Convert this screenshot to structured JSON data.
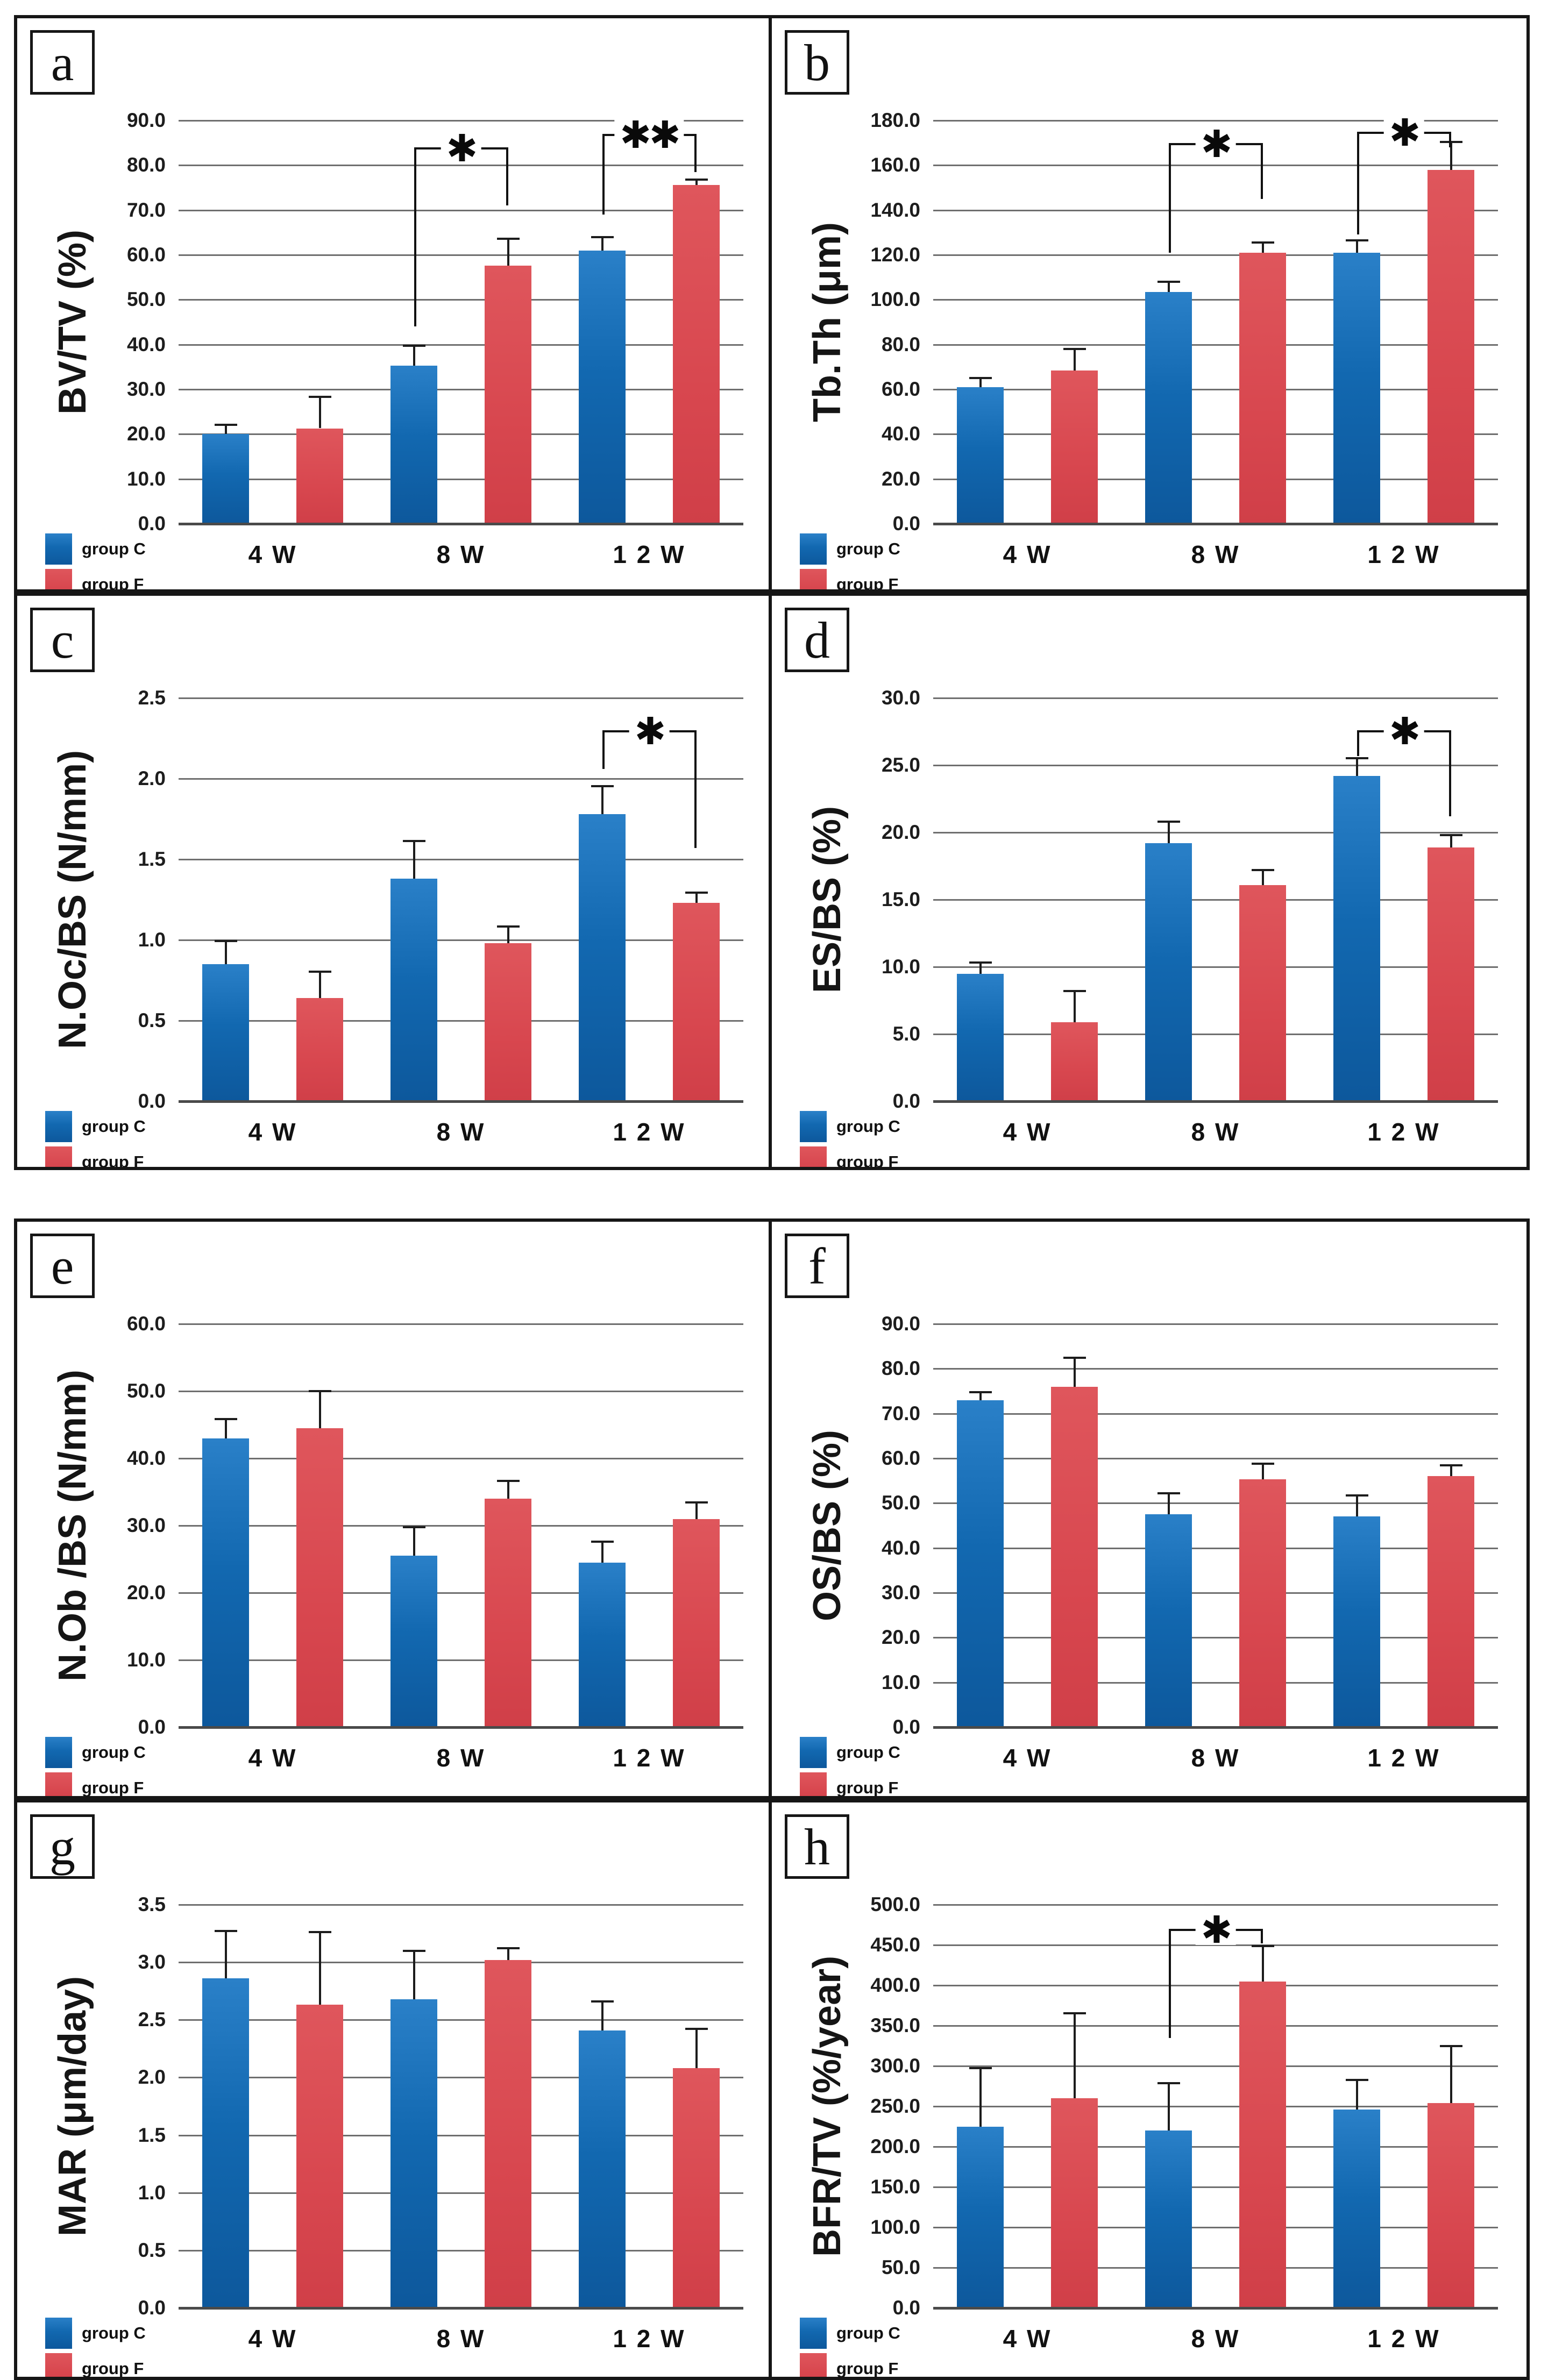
{
  "figure": {
    "legend": {
      "group_c_label": "group C",
      "group_f_label": "group F"
    },
    "colors": {
      "group_c_top": "#2a80c8",
      "group_c_bottom": "#0d589c",
      "group_f_top": "#df565c",
      "group_f_bottom": "#d03f48",
      "gridline": "#6f6f6f",
      "axis_line": "#4a4a4a",
      "panel_border": "#161616"
    },
    "x_categories": [
      "4 W",
      "8 W",
      "1 2 W"
    ]
  },
  "chart_data": [
    {
      "panel": "a",
      "type": "bar",
      "title": "",
      "xlabel": "",
      "ylabel": "BV/TV (%)",
      "ylim": [
        0,
        90
      ],
      "ytick_labels": [
        "0.0",
        "10.0",
        "20.0",
        "30.0",
        "40.0",
        "50.0",
        "60.0",
        "70.0",
        "80.0",
        "90.0"
      ],
      "categories": [
        "4 W",
        "8 W",
        "1 2 W"
      ],
      "series": [
        {
          "name": "group C",
          "values": [
            20.0,
            35.3,
            61.0
          ],
          "errors": [
            2.3,
            4.7,
            3.2
          ]
        },
        {
          "name": "group F",
          "values": [
            21.3,
            57.6,
            75.6
          ],
          "errors": [
            7.3,
            6.2,
            1.4
          ]
        }
      ],
      "significance": [
        {
          "category_index": 1,
          "label": "✱",
          "bar_y": 84,
          "left_drop_y": 44,
          "right_drop_y": 71
        },
        {
          "category_index": 2,
          "label": "✱✱",
          "bar_y": 87,
          "left_drop_y": 69,
          "right_drop_y": 78.5
        }
      ]
    },
    {
      "panel": "b",
      "type": "bar",
      "title": "",
      "xlabel": "",
      "ylabel": "Tb.Th (μm)",
      "ylim": [
        0,
        180
      ],
      "ytick_labels": [
        "0.0",
        "20.0",
        "40.0",
        "60.0",
        "80.0",
        "100.0",
        "120.0",
        "140.0",
        "160.0",
        "180.0"
      ],
      "categories": [
        "4 W",
        "8 W",
        "1 2 W"
      ],
      "series": [
        {
          "name": "group C",
          "values": [
            61.0,
            103.5,
            121.0
          ],
          "errors": [
            4.5,
            5.0,
            6.0
          ]
        },
        {
          "name": "group F",
          "values": [
            68.5,
            121.0,
            158.0
          ],
          "errors": [
            10.0,
            5.0,
            13.0
          ]
        }
      ],
      "significance": [
        {
          "category_index": 1,
          "label": "✱",
          "bar_y": 170,
          "left_drop_y": 121,
          "right_drop_y": 145
        },
        {
          "category_index": 2,
          "label": "✱",
          "bar_y": 175,
          "left_drop_y": 129,
          "right_drop_y": 168
        }
      ]
    },
    {
      "panel": "c",
      "type": "bar",
      "title": "",
      "xlabel": "",
      "ylabel": "N.Oc/BS (N/mm)",
      "ylim": [
        0,
        2.5
      ],
      "ytick_labels": [
        "0.0",
        "0.5",
        "1.0",
        "1.5",
        "2.0",
        "2.5"
      ],
      "categories": [
        "4 W",
        "8 W",
        "1 2 W"
      ],
      "series": [
        {
          "name": "group C",
          "values": [
            0.85,
            1.38,
            1.78
          ],
          "errors": [
            0.15,
            0.24,
            0.18
          ]
        },
        {
          "name": "group F",
          "values": [
            0.64,
            0.98,
            1.23
          ],
          "errors": [
            0.17,
            0.11,
            0.07
          ]
        }
      ],
      "significance": [
        {
          "category_index": 2,
          "label": "✱",
          "bar_y": 2.3,
          "left_drop_y": 2.06,
          "right_drop_y": 1.57
        }
      ]
    },
    {
      "panel": "d",
      "type": "bar",
      "title": "",
      "xlabel": "",
      "ylabel": "ES/BS (%)",
      "ylim": [
        0,
        30
      ],
      "ytick_labels": [
        "0.0",
        "5.0",
        "10.0",
        "15.0",
        "20.0",
        "25.0",
        "30.0"
      ],
      "categories": [
        "4 W",
        "8 W",
        "1 2 W"
      ],
      "series": [
        {
          "name": "group C",
          "values": [
            9.5,
            19.2,
            24.2
          ],
          "errors": [
            0.9,
            1.7,
            1.4
          ]
        },
        {
          "name": "group F",
          "values": [
            5.9,
            16.1,
            18.9
          ],
          "errors": [
            2.4,
            1.2,
            1.0
          ]
        }
      ],
      "significance": [
        {
          "category_index": 2,
          "label": "✱",
          "bar_y": 27.6,
          "left_drop_y": 25.7,
          "right_drop_y": 21.2
        }
      ]
    },
    {
      "panel": "e",
      "type": "bar",
      "title": "",
      "xlabel": "",
      "ylabel": "N.Ob /BS (N/mm)",
      "ylim": [
        0,
        60
      ],
      "ytick_labels": [
        "0.0",
        "10.0",
        "20.0",
        "30.0",
        "40.0",
        "50.0",
        "60.0"
      ],
      "categories": [
        "4 W",
        "8 W",
        "1 2 W"
      ],
      "series": [
        {
          "name": "group C",
          "values": [
            43.0,
            25.5,
            24.5
          ],
          "errors": [
            3.0,
            4.4,
            3.3
          ]
        },
        {
          "name": "group F",
          "values": [
            44.5,
            34.0,
            31.0
          ],
          "errors": [
            5.7,
            2.8,
            2.6
          ]
        }
      ],
      "significance": []
    },
    {
      "panel": "f",
      "type": "bar",
      "title": "",
      "xlabel": "",
      "ylabel": "OS/BS (%)",
      "ylim": [
        0,
        90
      ],
      "ytick_labels": [
        "0.0",
        "10.0",
        "20.0",
        "30.0",
        "40.0",
        "50.0",
        "60.0",
        "70.0",
        "80.0",
        "90.0"
      ],
      "categories": [
        "4 W",
        "8 W",
        "1 2 W"
      ],
      "series": [
        {
          "name": "group C",
          "values": [
            73.0,
            47.5,
            47.0
          ],
          "errors": [
            2.0,
            5.0,
            5.0
          ]
        },
        {
          "name": "group F",
          "values": [
            76.0,
            55.3,
            56.0
          ],
          "errors": [
            6.7,
            3.7,
            2.7
          ]
        }
      ],
      "significance": []
    },
    {
      "panel": "g",
      "type": "bar",
      "title": "",
      "xlabel": "",
      "ylabel": "MAR (μm/day)",
      "ylim": [
        0,
        3.5
      ],
      "ytick_labels": [
        "0.0",
        "0.5",
        "1.0",
        "1.5",
        "2.0",
        "2.5",
        "3.0",
        "3.5"
      ],
      "categories": [
        "4 W",
        "8 W",
        "1 2 W"
      ],
      "series": [
        {
          "name": "group C",
          "values": [
            2.86,
            2.68,
            2.41
          ],
          "errors": [
            0.42,
            0.43,
            0.26
          ]
        },
        {
          "name": "group F",
          "values": [
            2.63,
            3.02,
            2.08
          ],
          "errors": [
            0.64,
            0.11,
            0.35
          ]
        }
      ],
      "significance": []
    },
    {
      "panel": "h",
      "type": "bar",
      "title": "",
      "xlabel": "",
      "ylabel": "BFR/TV (%/year)",
      "ylim": [
        0,
        500
      ],
      "ytick_labels": [
        "0.0",
        "50.0",
        "100.0",
        "150.0",
        "200.0",
        "250.0",
        "300.0",
        "350.0",
        "400.0",
        "450.0",
        "500.0"
      ],
      "categories": [
        "4 W",
        "8 W",
        "1 2 W"
      ],
      "series": [
        {
          "name": "group C",
          "values": [
            225.0,
            220.0,
            246.0
          ],
          "errors": [
            74.0,
            60.0,
            38.0
          ]
        },
        {
          "name": "group F",
          "values": [
            260.0,
            405.0,
            254.0
          ],
          "errors": [
            107.0,
            45.0,
            72.0
          ]
        }
      ],
      "significance": [
        {
          "category_index": 1,
          "label": "✱",
          "bar_y": 470,
          "left_drop_y": 335,
          "right_drop_y": 452
        }
      ]
    }
  ]
}
